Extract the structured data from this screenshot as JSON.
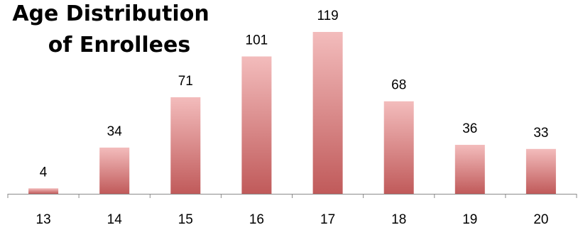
{
  "chart_data": {
    "type": "bar",
    "title_line1": "Age Distribution",
    "title_line2": "of Enrollees",
    "categories": [
      "13",
      "14",
      "15",
      "16",
      "17",
      "18",
      "19",
      "20"
    ],
    "values": [
      4,
      34,
      71,
      101,
      119,
      68,
      36,
      33
    ],
    "xlabel": "",
    "ylabel": "",
    "ylim": [
      0,
      119
    ],
    "grid": false,
    "show_data_labels": true,
    "bar_color_top": "#f3bcbc",
    "bar_color_bottom": "#c05a5a",
    "axis_color": "#8a8a8a"
  }
}
